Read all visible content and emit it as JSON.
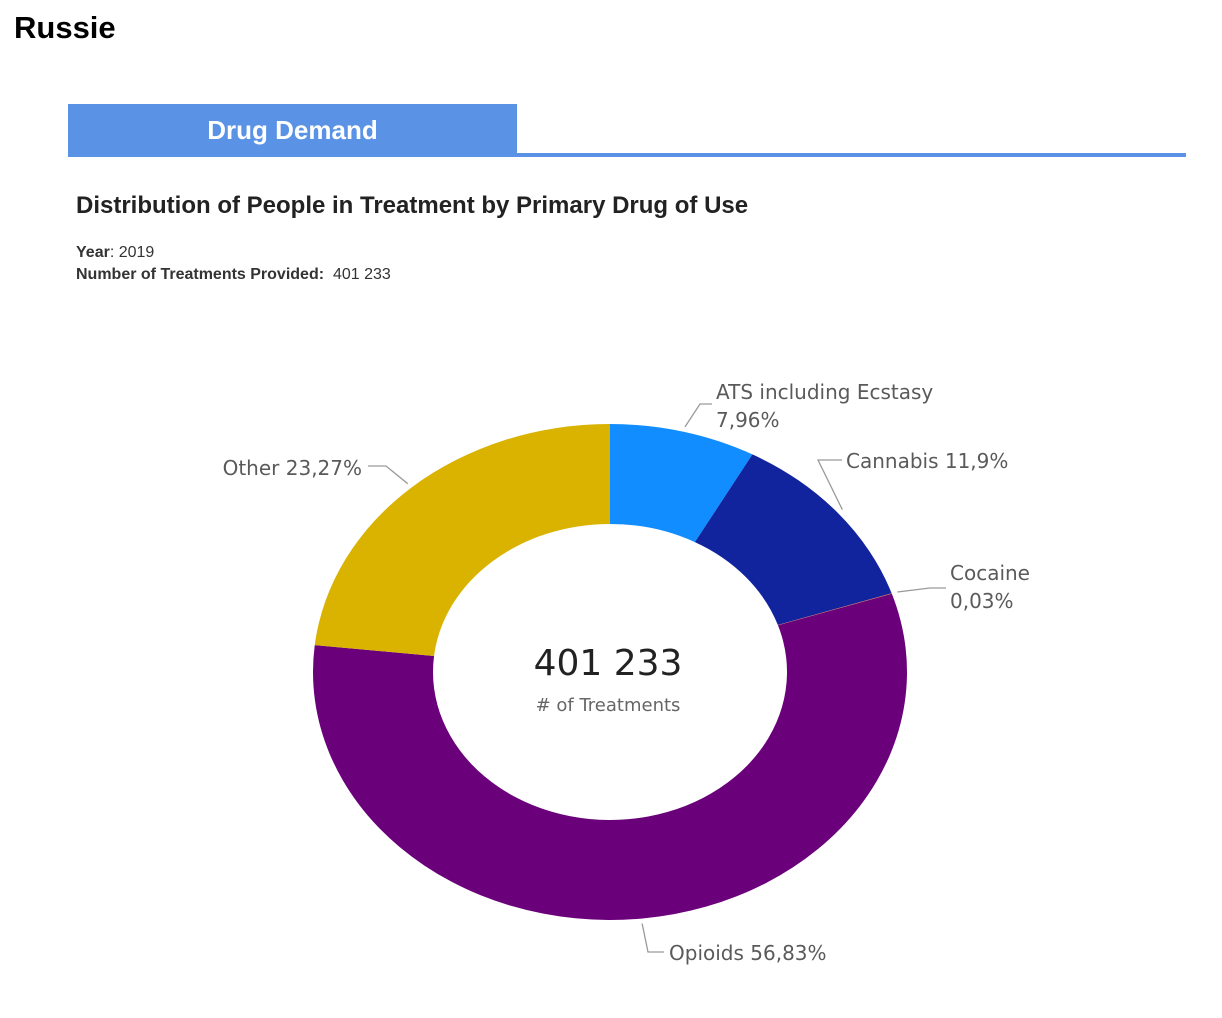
{
  "page_heading": "Russie",
  "tab": {
    "label": "Drug Demand",
    "color": "#5a93e6"
  },
  "chart_title": "Distribution of People in Treatment by Primary Drug of Use",
  "meta": {
    "year_label": "Year",
    "year_value": "2019",
    "count_label": "Number of Treatments Provided:",
    "count_value": "401 233"
  },
  "chart_data": {
    "type": "pie",
    "variant": "donut",
    "center_value": "401 233",
    "center_label": "# of Treatments",
    "slices": [
      {
        "name": "ATS including Ecstasy",
        "value": 7.96,
        "label_name": "ATS including Ecstasy",
        "label_value": "7,96%",
        "color": "#118dff"
      },
      {
        "name": "Cannabis",
        "value": 11.9,
        "label_name": "Cannabis",
        "label_value": "11,9%",
        "color": "#12239e"
      },
      {
        "name": "Cocaine",
        "value": 0.03,
        "label_name": "Cocaine",
        "label_value": "0,03%",
        "color": "#e66c37"
      },
      {
        "name": "Opioids",
        "value": 56.83,
        "label_name": "Opioids",
        "label_value": "56,83%",
        "color": "#6b007b"
      },
      {
        "name": "Other",
        "value": 23.27,
        "label_name": "Other",
        "label_value": "23,27%",
        "color": "#d9b300"
      }
    ]
  }
}
